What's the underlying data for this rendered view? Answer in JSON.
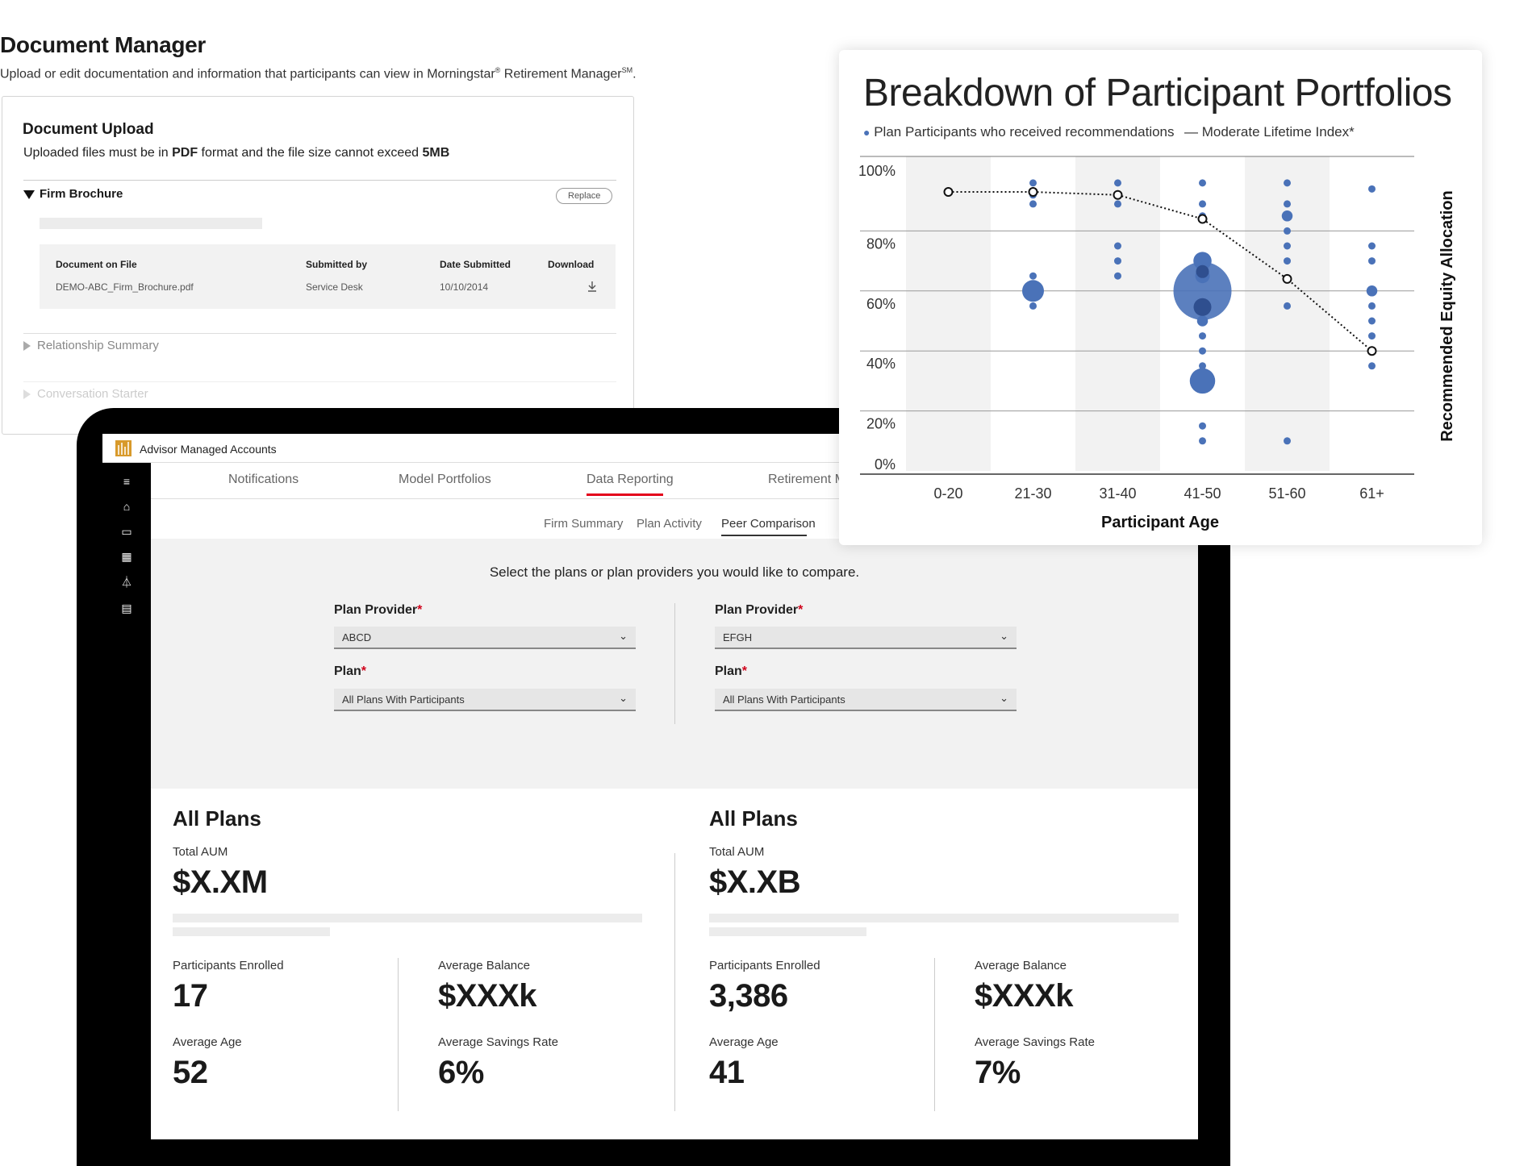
{
  "document_manager": {
    "title": "Document Manager",
    "subtitle": "Upload or edit documentation and information that participants can view in Morningstar",
    "subtitle_reg": "®",
    "subtitle_tail": " Retirement Manager",
    "subtitle_sm": "SM",
    "subtitle_end": ".",
    "upload": {
      "heading": "Document Upload",
      "note_pre": "Uploaded files must be in ",
      "note_pdf": "PDF",
      "note_mid": " format and the file size cannot exceed ",
      "note_size": "5MB"
    },
    "sections": {
      "firm_brochure": "Firm Brochure",
      "replace_label": "Replace",
      "relationship_summary": "Relationship Summary",
      "conversation_starter": "Conversation Starter"
    },
    "table": {
      "headers": [
        "Document on File",
        "Submitted by",
        "Date Submitted",
        "Download"
      ],
      "row": {
        "document": "DEMO-ABC_Firm_Brochure.pdf",
        "submitted_by": "Service Desk",
        "date": "10/10/2014",
        "download_icon": "download-icon"
      }
    }
  },
  "app": {
    "name": "Advisor Managed Accounts",
    "tabs": [
      "Notifications",
      "Model Portfolios",
      "Data Reporting",
      "Retirement Ma"
    ],
    "active_tab": "Data Reporting",
    "subtabs": [
      "Firm Summary",
      "Plan Activity",
      "Peer Comparison"
    ],
    "active_subtab": "Peer Comparison",
    "accent": "#e3001b",
    "nav_icons": [
      "menu-icon",
      "home-icon",
      "folder-icon",
      "grid-icon",
      "flask-icon",
      "document-icon"
    ],
    "compare": {
      "prompt": "Select the plans or plan providers you would like to compare.",
      "left": {
        "provider_label": "Plan Provider",
        "provider_value": "ABCD",
        "plan_label": "Plan",
        "plan_value": "All Plans With Participants"
      },
      "right": {
        "provider_label": "Plan Provider",
        "provider_value": "EFGH",
        "plan_label": "Plan",
        "plan_value": "All Plans With Participants"
      },
      "required_mark": "*"
    },
    "summary": {
      "left": {
        "heading": "All Plans",
        "aum_label": "Total AUM",
        "aum_value": "$X.XM",
        "enrolled_label": "Participants Enrolled",
        "enrolled_value": "17",
        "balance_label": "Average Balance",
        "balance_value": "$XXXk",
        "age_label": "Average Age",
        "age_value": "52",
        "savings_label": "Average Savings Rate",
        "savings_value": "6%"
      },
      "right": {
        "heading": "All Plans",
        "aum_label": "Total AUM",
        "aum_value": "$X.XB",
        "enrolled_label": "Participants Enrolled",
        "enrolled_value": "3,386",
        "balance_label": "Average Balance",
        "balance_value": "$XXXk",
        "age_label": "Average Age",
        "age_value": "41",
        "savings_label": "Average Savings Rate",
        "savings_value": "7%"
      }
    }
  },
  "chart_data": {
    "type": "scatter",
    "title": "Breakdown of Participant Portfolios",
    "legend": [
      "Plan Participants who received recommendations",
      "Moderate Lifetime Index*"
    ],
    "xlabel": "Participant Age",
    "ylabel": "Recommended Equity Allocation",
    "categories": [
      "0-20",
      "21-30",
      "31-40",
      "41-50",
      "51-60",
      "61+"
    ],
    "y_ticks": [
      "100%",
      "80%",
      "60%",
      "40%",
      "20%",
      "0%"
    ],
    "ylim": [
      0,
      100
    ],
    "point_color": "#4a72b8",
    "participants": [
      {
        "cat": "21-30",
        "y": 96,
        "r": 1
      },
      {
        "cat": "21-30",
        "y": 92,
        "r": 1
      },
      {
        "cat": "21-30",
        "y": 89,
        "r": 1
      },
      {
        "cat": "21-30",
        "y": 65,
        "r": 1
      },
      {
        "cat": "21-30",
        "y": 60,
        "r": 3
      },
      {
        "cat": "21-30",
        "y": 55,
        "r": 1
      },
      {
        "cat": "31-40",
        "y": 96,
        "r": 1
      },
      {
        "cat": "31-40",
        "y": 89,
        "r": 1
      },
      {
        "cat": "31-40",
        "y": 75,
        "r": 1
      },
      {
        "cat": "31-40",
        "y": 70,
        "r": 1
      },
      {
        "cat": "31-40",
        "y": 65,
        "r": 1
      },
      {
        "cat": "41-50",
        "y": 96,
        "r": 1
      },
      {
        "cat": "41-50",
        "y": 89,
        "r": 1
      },
      {
        "cat": "41-50",
        "y": 85,
        "r": 1
      },
      {
        "cat": "41-50",
        "y": 70,
        "r": 2.5
      },
      {
        "cat": "41-50",
        "y": 65,
        "r": 2
      },
      {
        "cat": "41-50",
        "y": 60,
        "r": 8
      },
      {
        "cat": "41-50",
        "y": 55,
        "r": 2
      },
      {
        "cat": "41-50",
        "y": 50,
        "r": 1.5
      },
      {
        "cat": "41-50",
        "y": 45,
        "r": 1
      },
      {
        "cat": "41-50",
        "y": 40,
        "r": 1
      },
      {
        "cat": "41-50",
        "y": 35,
        "r": 1
      },
      {
        "cat": "41-50",
        "y": 30,
        "r": 3.5
      },
      {
        "cat": "41-50",
        "y": 15,
        "r": 1
      },
      {
        "cat": "41-50",
        "y": 10,
        "r": 1
      },
      {
        "cat": "51-60",
        "y": 96,
        "r": 1
      },
      {
        "cat": "51-60",
        "y": 89,
        "r": 1
      },
      {
        "cat": "51-60",
        "y": 85,
        "r": 1.5
      },
      {
        "cat": "51-60",
        "y": 80,
        "r": 1
      },
      {
        "cat": "51-60",
        "y": 75,
        "r": 1
      },
      {
        "cat": "51-60",
        "y": 70,
        "r": 1
      },
      {
        "cat": "51-60",
        "y": 55,
        "r": 1
      },
      {
        "cat": "51-60",
        "y": 10,
        "r": 1
      },
      {
        "cat": "61+",
        "y": 94,
        "r": 1
      },
      {
        "cat": "61+",
        "y": 75,
        "r": 1
      },
      {
        "cat": "61+",
        "y": 70,
        "r": 1
      },
      {
        "cat": "61+",
        "y": 60,
        "r": 1.5
      },
      {
        "cat": "61+",
        "y": 55,
        "r": 1
      },
      {
        "cat": "61+",
        "y": 50,
        "r": 1
      },
      {
        "cat": "61+",
        "y": 45,
        "r": 1
      },
      {
        "cat": "61+",
        "y": 35,
        "r": 1
      }
    ],
    "index_line": [
      {
        "cat": "0-20",
        "y": 93
      },
      {
        "cat": "21-30",
        "y": 93
      },
      {
        "cat": "31-40",
        "y": 92
      },
      {
        "cat": "41-50",
        "y": 84
      },
      {
        "cat": "51-60",
        "y": 64
      },
      {
        "cat": "61+",
        "y": 40
      }
    ]
  }
}
